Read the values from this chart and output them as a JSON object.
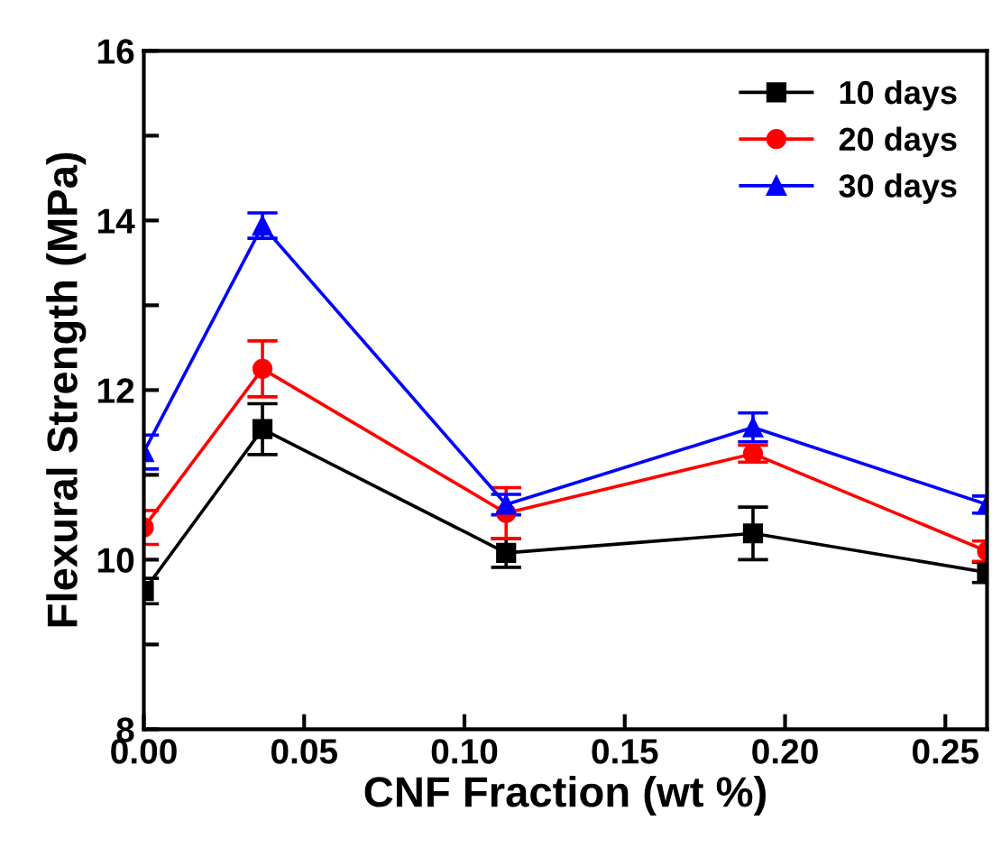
{
  "chart_data": {
    "type": "line",
    "xlabel": "CNF Fraction (wt %)",
    "ylabel": "Flexural Strength (MPa)",
    "x": [
      0.0,
      0.037,
      0.113,
      0.19,
      0.263
    ],
    "xlim": [
      0.0,
      0.263
    ],
    "xticks": [
      {
        "value": 0.0,
        "label": "0.00"
      },
      {
        "value": 0.05,
        "label": "0.05"
      },
      {
        "value": 0.1,
        "label": "0.10"
      },
      {
        "value": 0.15,
        "label": "0.15"
      },
      {
        "value": 0.2,
        "label": "0.20"
      },
      {
        "value": 0.25,
        "label": "0.25"
      }
    ],
    "ylim": [
      8,
      16
    ],
    "yticks": [
      8,
      {
        "value": 9,
        "label": null
      },
      10,
      {
        "value": 11,
        "label": null
      },
      12,
      {
        "value": 13,
        "label": null
      },
      14,
      {
        "value": 15,
        "label": null
      },
      16
    ],
    "grid": false,
    "legend": "top right",
    "series": [
      {
        "name": "10 days",
        "color": "#000000",
        "marker": "square",
        "values": [
          9.63,
          11.54,
          10.08,
          10.31,
          9.85
        ],
        "errors": [
          0.15,
          0.3,
          0.17,
          0.31,
          0.12
        ]
      },
      {
        "name": "20 days",
        "color": "#ff0000",
        "marker": "circle",
        "values": [
          10.38,
          12.25,
          10.55,
          11.25,
          10.1
        ],
        "errors": [
          0.2,
          0.33,
          0.3,
          0.1,
          0.12
        ]
      },
      {
        "name": "30 days",
        "color": "#0000ff",
        "marker": "triangle",
        "values": [
          11.27,
          13.94,
          10.65,
          11.56,
          10.65
        ],
        "errors": [
          0.2,
          0.15,
          0.12,
          0.17,
          0.1
        ]
      }
    ]
  }
}
